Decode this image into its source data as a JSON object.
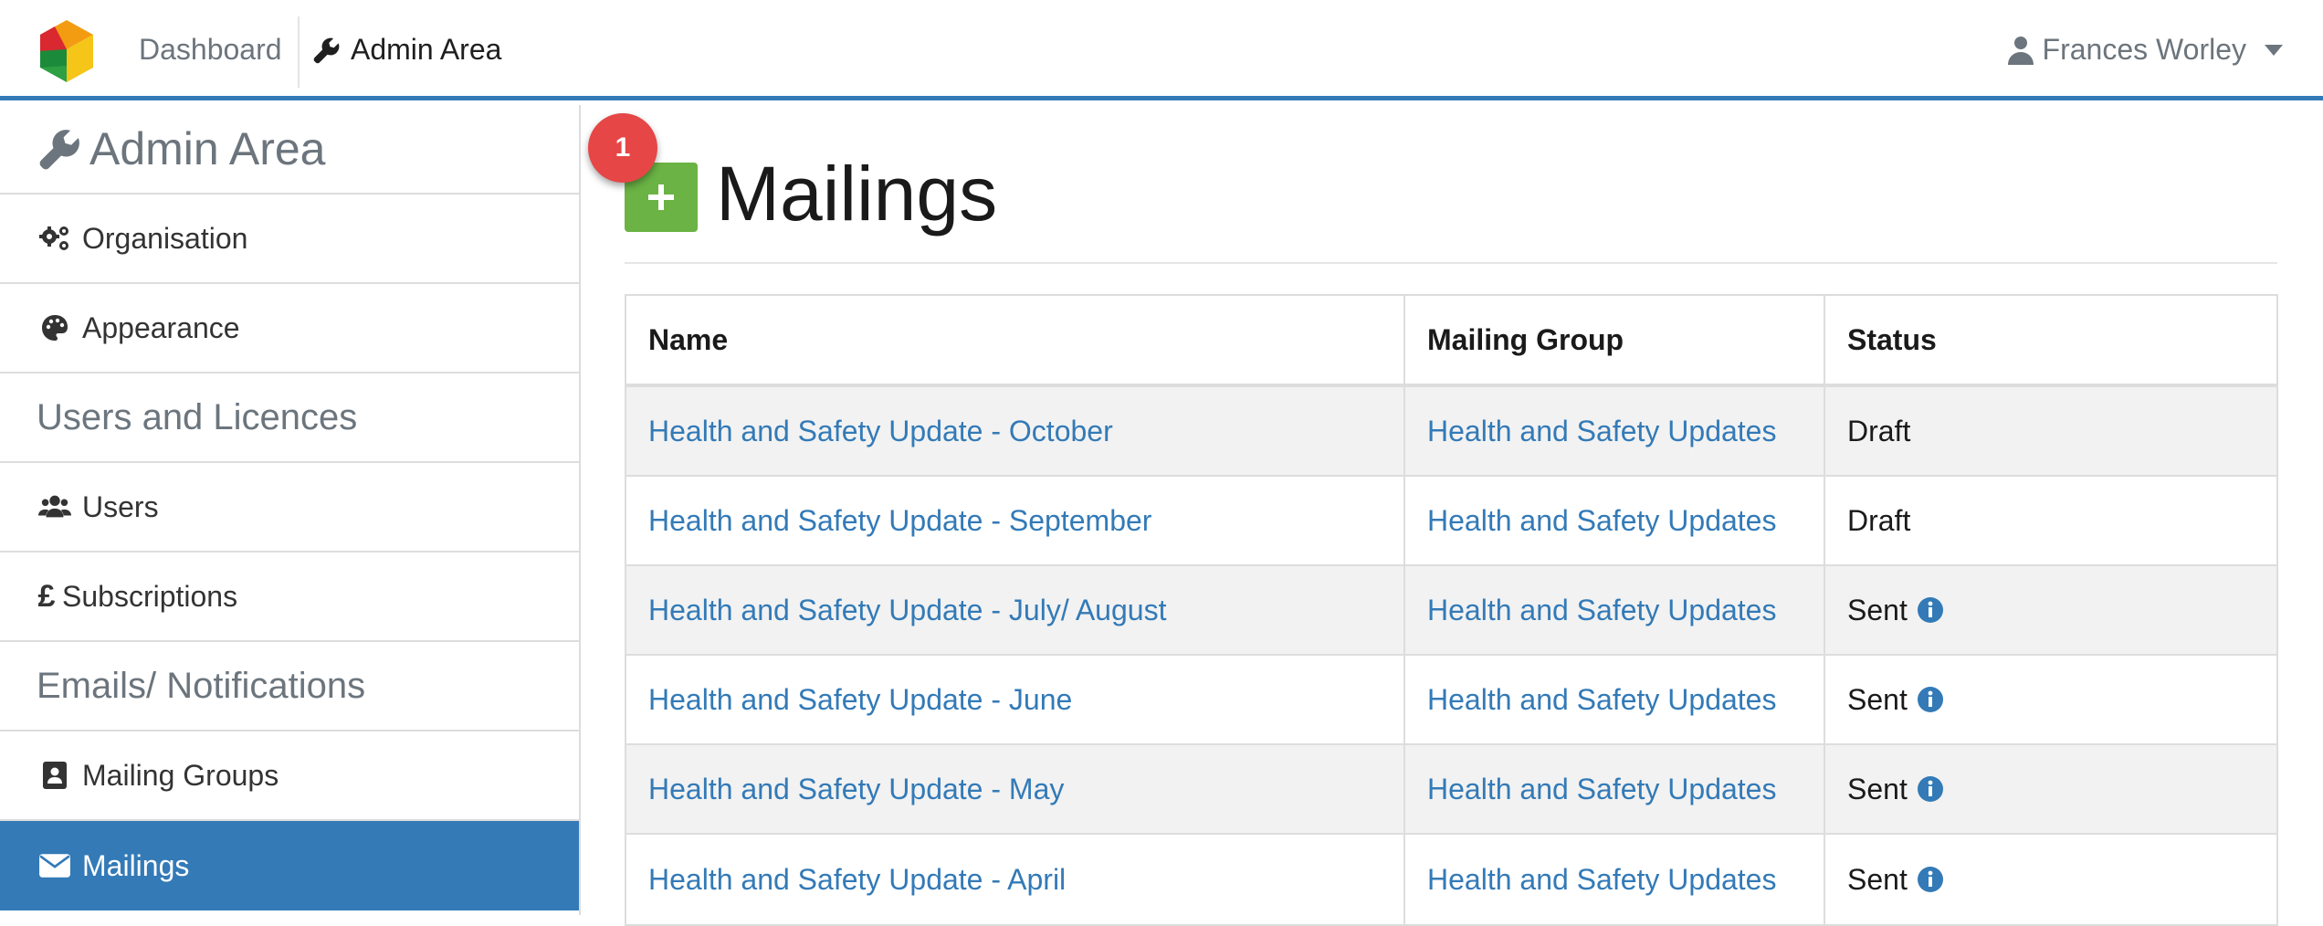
{
  "navbar": {
    "dashboard_label": "Dashboard",
    "admin_label": "Admin Area",
    "user_name": "Frances Worley"
  },
  "sidebar": {
    "title": "Admin Area",
    "items": [
      {
        "label": "Organisation",
        "icon": "cogs-icon"
      },
      {
        "label": "Appearance",
        "icon": "palette-icon"
      },
      {
        "heading": "Users and Licences"
      },
      {
        "label": "Users",
        "icon": "users-icon"
      },
      {
        "label": "Subscriptions",
        "icon": "pound-icon"
      },
      {
        "heading": "Emails/ Notifications"
      },
      {
        "label": "Mailing Groups",
        "icon": "address-book-icon"
      },
      {
        "label": "Mailings",
        "icon": "envelope-icon",
        "active": true
      }
    ]
  },
  "main": {
    "badge_count": "1",
    "title": "Mailings",
    "table": {
      "headers": [
        "Name",
        "Mailing Group",
        "Status"
      ],
      "rows": [
        {
          "name": "Health and Safety Update - October",
          "group": "Health and Safety Updates",
          "status": "Draft",
          "info": false
        },
        {
          "name": "Health and Safety Update - September",
          "group": "Health and Safety Updates",
          "status": "Draft",
          "info": false
        },
        {
          "name": "Health and Safety Update - July/ August",
          "group": "Health and Safety Updates",
          "status": "Sent",
          "info": true
        },
        {
          "name": "Health and Safety Update - June",
          "group": "Health and Safety Updates",
          "status": "Sent",
          "info": true
        },
        {
          "name": "Health and Safety Update - May",
          "group": "Health and Safety Updates",
          "status": "Sent",
          "info": true
        },
        {
          "name": "Health and Safety Update - April",
          "group": "Health and Safety Updates",
          "status": "Sent",
          "info": true
        }
      ]
    }
  },
  "colors": {
    "primary": "#337ab7",
    "success": "#6ab344",
    "badge": "#e64646",
    "muted": "#6c757d"
  }
}
